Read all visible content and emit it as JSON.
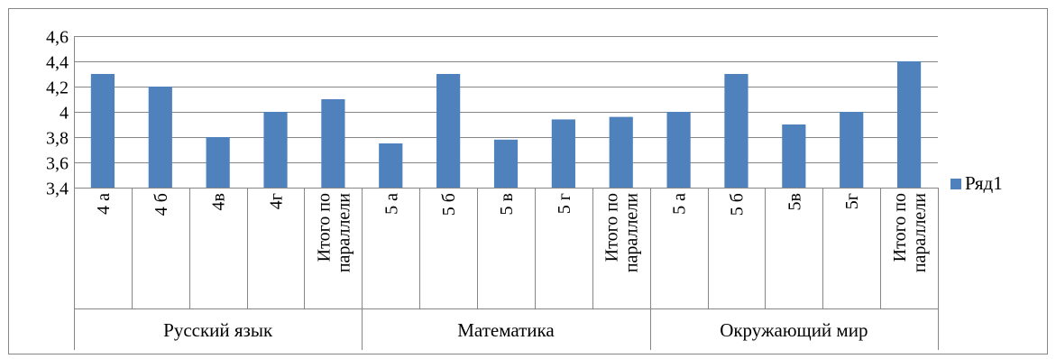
{
  "chart_data": {
    "type": "bar",
    "title": "",
    "xlabel": "",
    "ylabel": "",
    "ylim": [
      3.4,
      4.6
    ],
    "yticks": [
      "3,4",
      "3,6",
      "3,8",
      "4",
      "4,2",
      "4,4",
      "4,6"
    ],
    "ytick_values": [
      3.4,
      3.6,
      3.8,
      4.0,
      4.2,
      4.4,
      4.6
    ],
    "grid": true,
    "legend_position": "right",
    "colors": {
      "bar": "#4f81bd",
      "grid": "#868686",
      "axis": "#868686",
      "border": "#868686"
    },
    "groups": [
      {
        "label": "Русский язык",
        "categories": [
          [
            "4 а"
          ],
          [
            "4 б"
          ],
          [
            "4в"
          ],
          [
            "4г"
          ],
          [
            "Итого по",
            "параллели"
          ]
        ],
        "values": [
          4.3,
          4.2,
          3.8,
          4.0,
          4.1
        ]
      },
      {
        "label": "Математика",
        "categories": [
          [
            "5 а"
          ],
          [
            "5 б"
          ],
          [
            "5 в"
          ],
          [
            "5 г"
          ],
          [
            "Итого по",
            "параллели"
          ]
        ],
        "values": [
          3.75,
          4.3,
          3.78,
          3.94,
          3.96
        ]
      },
      {
        "label": "Окружающий мир",
        "categories": [
          [
            "5 а"
          ],
          [
            "5 б"
          ],
          [
            "5в"
          ],
          [
            "5г"
          ],
          [
            "Итого по",
            "параллели"
          ]
        ],
        "values": [
          4.0,
          4.3,
          3.9,
          4.0,
          4.4
        ]
      }
    ],
    "series": [
      {
        "name": "Ряд1"
      }
    ]
  }
}
